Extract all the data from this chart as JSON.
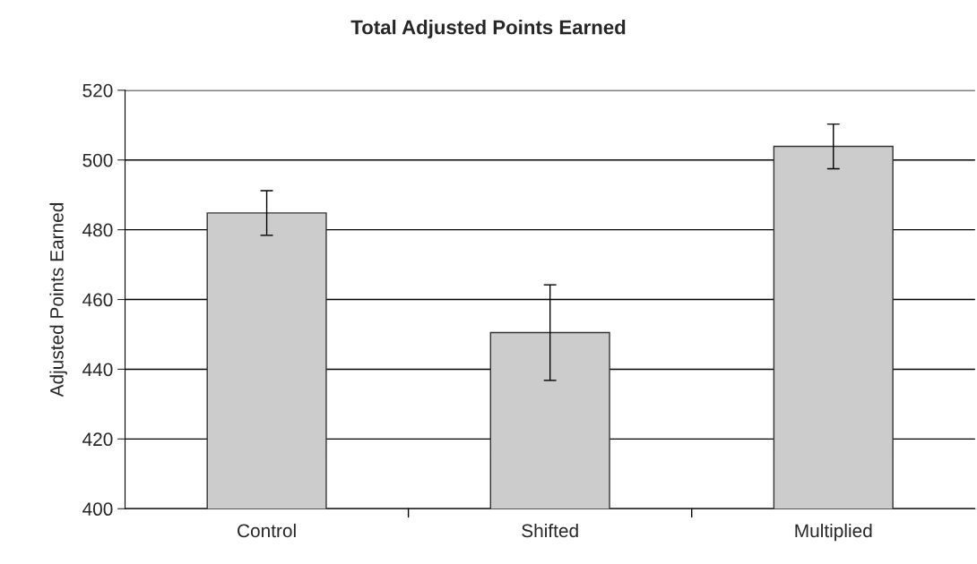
{
  "chart_data": {
    "type": "bar",
    "title": "Total Adjusted Points Earned",
    "ylabel": "Adjusted Points Earned",
    "categories": [
      "Control",
      "Shifted",
      "Multiplied"
    ],
    "values": [
      484.8,
      450.5,
      503.9
    ],
    "errors": [
      6.4,
      13.7,
      6.4
    ],
    "color": "#cccccc",
    "ylim": [
      400,
      520
    ],
    "yticks": [
      400,
      420,
      440,
      460,
      480,
      500,
      520
    ],
    "grid": "y",
    "legend": false
  }
}
